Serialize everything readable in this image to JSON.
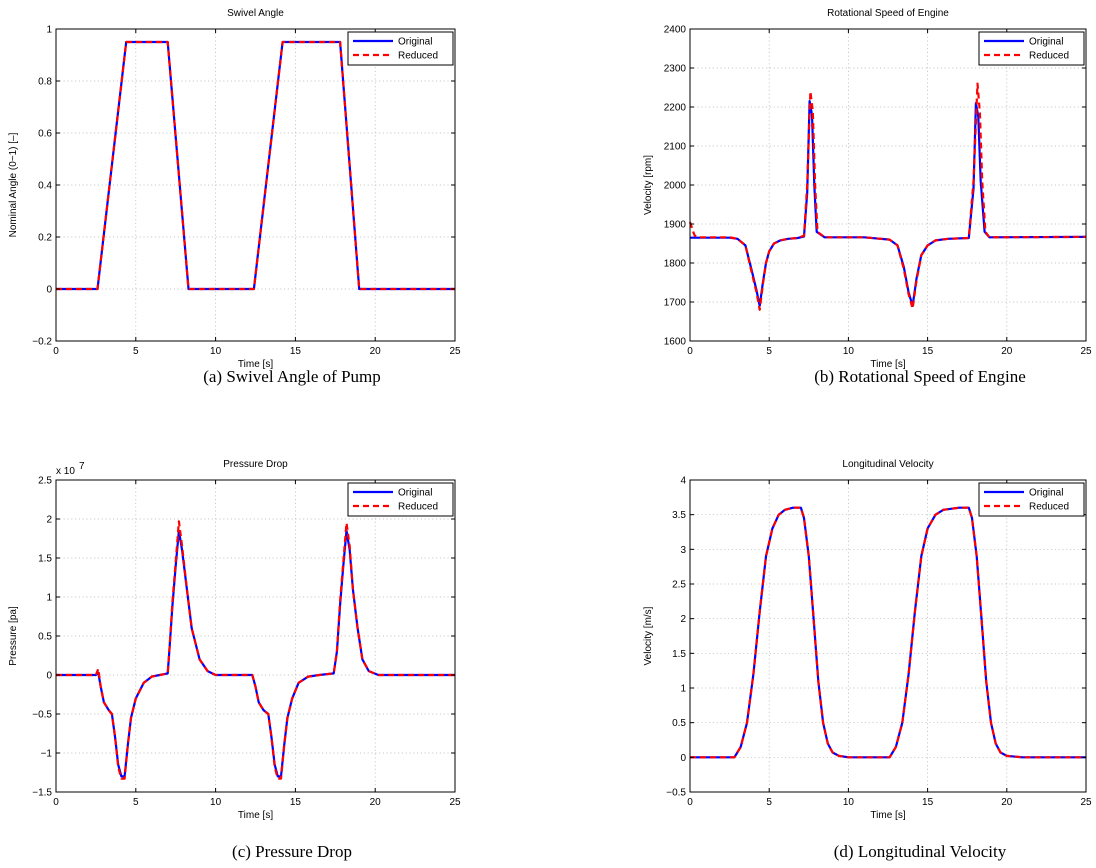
{
  "colors": {
    "original": "#0000ff",
    "reduced": "#ff0000"
  },
  "chart_data": [
    {
      "type": "line",
      "title": "Swivel Angle",
      "xlabel": "Time [s]",
      "ylabel": "Nominal Angle (0~1) [–]",
      "caption": "(a)  Swivel Angle of Pump",
      "xlim": [
        0,
        25
      ],
      "ylim": [
        -0.2,
        1
      ],
      "xticks": [
        0,
        5,
        10,
        15,
        20,
        25
      ],
      "xtick_labels": [
        "0",
        "5",
        "10",
        "15",
        "20",
        "25"
      ],
      "yticks": [
        -0.2,
        0,
        0.2,
        0.4,
        0.6,
        0.8,
        1
      ],
      "ytick_labels": [
        "−0.2",
        "0",
        "0.2",
        "0.4",
        "0.6",
        "0.8",
        "1"
      ],
      "exponent_label": "",
      "grid": true,
      "legend_position": "top-right",
      "series": [
        {
          "name": "Original",
          "x": [
            0,
            2.6,
            4.4,
            7.0,
            8.3,
            12.4,
            14.2,
            17.8,
            19.0,
            25
          ],
          "y": [
            0,
            0,
            0.95,
            0.95,
            0,
            0,
            0.95,
            0.95,
            0,
            0
          ]
        },
        {
          "name": "Reduced",
          "x": [
            0,
            2.6,
            4.4,
            7.0,
            8.3,
            12.4,
            14.2,
            17.8,
            19.0,
            25
          ],
          "y": [
            0,
            0,
            0.95,
            0.95,
            0,
            0,
            0.95,
            0.95,
            0,
            0
          ]
        }
      ]
    },
    {
      "type": "line",
      "title": "Rotational Speed of Engine",
      "xlabel": "Time [s]",
      "ylabel": "Velocity [rpm]",
      "caption": "(b)  Rotational Speed of Engine",
      "xlim": [
        0,
        25
      ],
      "ylim": [
        1600,
        2400
      ],
      "xticks": [
        0,
        5,
        10,
        15,
        20,
        25
      ],
      "xtick_labels": [
        "0",
        "5",
        "10",
        "15",
        "20",
        "25"
      ],
      "yticks": [
        1600,
        1700,
        1800,
        1900,
        2000,
        2100,
        2200,
        2300,
        2400
      ],
      "ytick_labels": [
        "1600",
        "1700",
        "1800",
        "1900",
        "2000",
        "2100",
        "2200",
        "2300",
        "2400"
      ],
      "exponent_label": "",
      "grid": true,
      "legend_position": "top-right",
      "series": [
        {
          "name": "Original",
          "x": [
            0,
            2.5,
            3.0,
            3.5,
            3.9,
            4.2,
            4.4,
            4.6,
            4.8,
            5.0,
            5.3,
            5.7,
            6.2,
            6.8,
            7.2,
            7.4,
            7.55,
            7.7,
            7.85,
            8.0,
            8.5,
            11.0,
            12.6,
            13.1,
            13.5,
            13.8,
            14.05,
            14.3,
            14.6,
            15.0,
            15.5,
            16.3,
            17.6,
            17.9,
            18.05,
            18.2,
            18.35,
            18.6,
            18.9,
            25
          ],
          "y": [
            1865,
            1865,
            1862,
            1845,
            1780,
            1730,
            1690,
            1750,
            1800,
            1830,
            1850,
            1858,
            1862,
            1864,
            1868,
            1980,
            2215,
            2180,
            2000,
            1880,
            1866,
            1866,
            1860,
            1845,
            1790,
            1725,
            1690,
            1760,
            1820,
            1845,
            1858,
            1862,
            1864,
            1990,
            2210,
            2175,
            2010,
            1880,
            1866,
            1867
          ]
        },
        {
          "name": "Reduced",
          "x": [
            0,
            0.1,
            0.2,
            0.3,
            0.5,
            2.5,
            3.0,
            3.5,
            3.9,
            4.2,
            4.4,
            4.6,
            4.8,
            5.0,
            5.3,
            5.7,
            6.2,
            6.8,
            7.2,
            7.4,
            7.6,
            7.75,
            7.9,
            8.05,
            8.5,
            11.0,
            12.6,
            13.1,
            13.5,
            13.8,
            14.05,
            14.3,
            14.6,
            15.0,
            15.5,
            16.3,
            17.6,
            17.9,
            18.15,
            18.3,
            18.45,
            18.65,
            18.9,
            25
          ],
          "y": [
            1905,
            1893,
            1880,
            1870,
            1866,
            1866,
            1862,
            1845,
            1775,
            1725,
            1680,
            1745,
            1800,
            1830,
            1850,
            1858,
            1862,
            1864,
            1870,
            2000,
            2240,
            2190,
            2000,
            1880,
            1866,
            1866,
            1860,
            1845,
            1785,
            1720,
            1683,
            1755,
            1820,
            1845,
            1858,
            1862,
            1864,
            2010,
            2260,
            2185,
            2010,
            1880,
            1866,
            1867
          ]
        }
      ]
    },
    {
      "type": "line",
      "title": "Pressure Drop",
      "xlabel": "Time [s]",
      "ylabel": "Pressure [pa]",
      "caption": "(c)  Pressure Drop",
      "xlim": [
        0,
        25
      ],
      "ylim": [
        -1.5,
        2.5
      ],
      "xticks": [
        0,
        5,
        10,
        15,
        20,
        25
      ],
      "xtick_labels": [
        "0",
        "5",
        "10",
        "15",
        "20",
        "25"
      ],
      "yticks": [
        -1.5,
        -1,
        -0.5,
        0,
        0.5,
        1,
        1.5,
        2,
        2.5
      ],
      "ytick_labels": [
        "−1.5",
        "−1",
        "−0.5",
        "0",
        "0.5",
        "1",
        "1.5",
        "2",
        "2.5"
      ],
      "exponent_label": "x 10",
      "exponent_power": "7",
      "grid": true,
      "legend_position": "top-right",
      "series": [
        {
          "name": "Original",
          "x": [
            0,
            2.5,
            2.65,
            2.8,
            3.0,
            3.3,
            3.5,
            3.7,
            3.9,
            4.1,
            4.3,
            4.5,
            4.7,
            5.0,
            5.5,
            6.0,
            6.5,
            7.0,
            7.1,
            7.3,
            7.5,
            7.7,
            7.9,
            8.2,
            8.5,
            9.0,
            9.5,
            10.0,
            12.3,
            12.5,
            12.7,
            13.0,
            13.3,
            13.5,
            13.7,
            13.9,
            14.1,
            14.3,
            14.5,
            14.8,
            15.2,
            15.8,
            16.5,
            17.4,
            17.6,
            17.8,
            18.0,
            18.2,
            18.4,
            18.6,
            18.9,
            19.2,
            19.6,
            20.2,
            25
          ],
          "y": [
            0,
            0,
            0.03,
            -0.15,
            -0.35,
            -0.45,
            -0.5,
            -0.8,
            -1.15,
            -1.3,
            -1.3,
            -0.9,
            -0.55,
            -0.3,
            -0.1,
            -0.02,
            0,
            0.02,
            0.3,
            0.9,
            1.4,
            1.85,
            1.6,
            1.1,
            0.6,
            0.2,
            0.05,
            0,
            0,
            -0.15,
            -0.35,
            -0.45,
            -0.5,
            -0.8,
            -1.15,
            -1.3,
            -1.3,
            -0.9,
            -0.55,
            -0.3,
            -0.1,
            -0.02,
            0,
            0.02,
            0.3,
            0.9,
            1.4,
            1.85,
            1.6,
            1.1,
            0.6,
            0.2,
            0.05,
            0,
            0
          ]
        },
        {
          "name": "Reduced",
          "x": [
            0,
            2.5,
            2.65,
            2.8,
            3.0,
            3.3,
            3.5,
            3.7,
            3.9,
            4.1,
            4.3,
            4.5,
            4.7,
            5.0,
            5.5,
            6.0,
            6.5,
            7.0,
            7.1,
            7.3,
            7.5,
            7.7,
            7.9,
            8.2,
            8.5,
            9.0,
            9.5,
            10.0,
            12.3,
            12.5,
            12.7,
            13.0,
            13.3,
            13.5,
            13.7,
            13.9,
            14.1,
            14.3,
            14.5,
            14.8,
            15.2,
            15.8,
            16.5,
            17.4,
            17.6,
            17.8,
            18.0,
            18.2,
            18.4,
            18.6,
            18.9,
            19.2,
            19.6,
            20.2,
            25
          ],
          "y": [
            0,
            0,
            0.08,
            -0.15,
            -0.35,
            -0.45,
            -0.5,
            -0.8,
            -1.18,
            -1.33,
            -1.33,
            -0.9,
            -0.55,
            -0.3,
            -0.1,
            -0.02,
            0,
            0.02,
            0.3,
            0.95,
            1.45,
            1.97,
            1.65,
            1.1,
            0.6,
            0.2,
            0.05,
            0,
            0,
            -0.15,
            -0.35,
            -0.45,
            -0.5,
            -0.8,
            -1.18,
            -1.33,
            -1.33,
            -0.9,
            -0.55,
            -0.3,
            -0.1,
            -0.02,
            0,
            0.02,
            0.3,
            0.95,
            1.45,
            1.95,
            1.65,
            1.1,
            0.6,
            0.2,
            0.05,
            0,
            0
          ]
        }
      ]
    },
    {
      "type": "line",
      "title": "Longitudinal Velocity",
      "xlabel": "Time [s]",
      "ylabel": "Velocity [m/s]",
      "caption": "(d)  Longitudinal Velocity",
      "xlim": [
        0,
        25
      ],
      "ylim": [
        -0.5,
        4
      ],
      "xticks": [
        0,
        5,
        10,
        15,
        20,
        25
      ],
      "xtick_labels": [
        "0",
        "5",
        "10",
        "15",
        "20",
        "25"
      ],
      "yticks": [
        -0.5,
        0,
        0.5,
        1,
        1.5,
        2,
        2.5,
        3,
        3.5,
        4
      ],
      "ytick_labels": [
        "−0.5",
        "0",
        "0.5",
        "1",
        "1.5",
        "2",
        "2.5",
        "3",
        "3.5",
        "4"
      ],
      "exponent_label": "",
      "grid": true,
      "legend_position": "top-right",
      "series": [
        {
          "name": "Original",
          "x": [
            0,
            2.8,
            3.2,
            3.6,
            4.0,
            4.4,
            4.8,
            5.2,
            5.6,
            6.0,
            6.5,
            7.0,
            7.2,
            7.5,
            7.8,
            8.1,
            8.4,
            8.7,
            9.0,
            9.4,
            10.0,
            11.0,
            12.6,
            13.0,
            13.4,
            13.8,
            14.2,
            14.6,
            15.0,
            15.5,
            16.0,
            17.0,
            17.6,
            17.8,
            18.1,
            18.4,
            18.7,
            19.0,
            19.3,
            19.6,
            20.0,
            21.0,
            25
          ],
          "y": [
            0,
            0,
            0.15,
            0.5,
            1.2,
            2.1,
            2.9,
            3.3,
            3.5,
            3.57,
            3.6,
            3.6,
            3.45,
            2.9,
            2.0,
            1.1,
            0.5,
            0.2,
            0.07,
            0.02,
            0,
            0,
            0,
            0.15,
            0.5,
            1.2,
            2.1,
            2.9,
            3.3,
            3.5,
            3.57,
            3.6,
            3.6,
            3.45,
            2.9,
            2.0,
            1.1,
            0.5,
            0.2,
            0.07,
            0.02,
            0,
            0
          ]
        },
        {
          "name": "Reduced",
          "x": [
            0,
            2.8,
            3.2,
            3.6,
            4.0,
            4.4,
            4.8,
            5.2,
            5.6,
            6.0,
            6.5,
            7.0,
            7.2,
            7.5,
            7.8,
            8.1,
            8.4,
            8.7,
            9.0,
            9.4,
            10.0,
            11.0,
            12.6,
            13.0,
            13.4,
            13.8,
            14.2,
            14.6,
            15.0,
            15.5,
            16.0,
            17.0,
            17.6,
            17.8,
            18.1,
            18.4,
            18.7,
            19.0,
            19.3,
            19.6,
            20.0,
            21.0,
            25
          ],
          "y": [
            0,
            0,
            0.15,
            0.5,
            1.2,
            2.1,
            2.9,
            3.3,
            3.5,
            3.57,
            3.6,
            3.6,
            3.45,
            2.9,
            2.0,
            1.1,
            0.5,
            0.2,
            0.07,
            0.02,
            0,
            0,
            0,
            0.15,
            0.5,
            1.2,
            2.1,
            2.9,
            3.3,
            3.5,
            3.57,
            3.6,
            3.6,
            3.45,
            2.9,
            2.0,
            1.1,
            0.5,
            0.2,
            0.07,
            0.02,
            0,
            0
          ]
        }
      ]
    }
  ]
}
